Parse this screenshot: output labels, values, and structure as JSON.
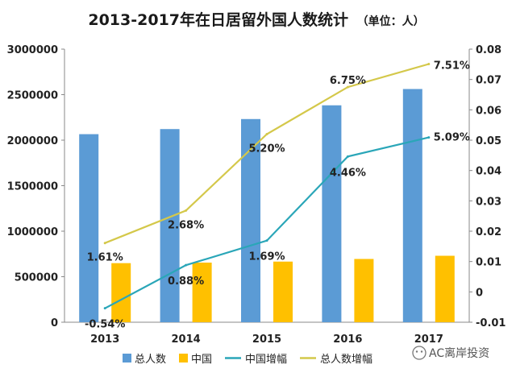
{
  "chart_data": {
    "type": "bar",
    "title": "2013-2017年在日居留外国人数统计",
    "subtitle": "（单位：人）",
    "categories": [
      "2013",
      "2014",
      "2015",
      "2016",
      "2017"
    ],
    "series": [
      {
        "name": "总人数",
        "kind": "bar",
        "axis": "left",
        "color": "#5b9bd5",
        "values": [
          2066000,
          2122000,
          2232000,
          2383000,
          2562000
        ]
      },
      {
        "name": "中国",
        "kind": "bar",
        "axis": "left",
        "color": "#ffc000",
        "values": [
          649000,
          655000,
          666000,
          695000,
          730000
        ]
      },
      {
        "name": "中国增幅",
        "kind": "line",
        "axis": "right",
        "color": "#2aa6b8",
        "values": [
          -0.0054,
          0.0088,
          0.0169,
          0.0446,
          0.0509
        ],
        "labels": [
          "-0.54%",
          "0.88%",
          "1.69%",
          "4.46%",
          "5.09%"
        ]
      },
      {
        "name": "总人数增幅",
        "kind": "line",
        "axis": "right",
        "color": "#d4c84a",
        "values": [
          0.0161,
          0.0268,
          0.052,
          0.0675,
          0.0751
        ],
        "labels": [
          "1.61%",
          "2.68%",
          "5.20%",
          "6.75%",
          "7.51%"
        ]
      }
    ],
    "yleft": {
      "lim": [
        0,
        3000000
      ],
      "ticks": [
        0,
        500000,
        1000000,
        1500000,
        2000000,
        2500000,
        3000000
      ],
      "tick_labels": [
        "0",
        "500000",
        "1000000",
        "1500000",
        "2000000",
        "2500000",
        "3000000"
      ]
    },
    "yright": {
      "lim": [
        -0.01,
        0.08
      ],
      "ticks": [
        -0.01,
        0,
        0.01,
        0.02,
        0.03,
        0.04,
        0.05,
        0.06,
        0.07,
        0.08
      ],
      "tick_labels": [
        "-0.01",
        "0",
        "0.01",
        "0.02",
        "0.03",
        "0.04",
        "0.05",
        "0.06",
        "0.07",
        "0.08"
      ]
    },
    "grid": false,
    "legend": "bottom",
    "source_watermark": "AC离岸投资",
    "watermark_icon": "wechat-icon"
  }
}
